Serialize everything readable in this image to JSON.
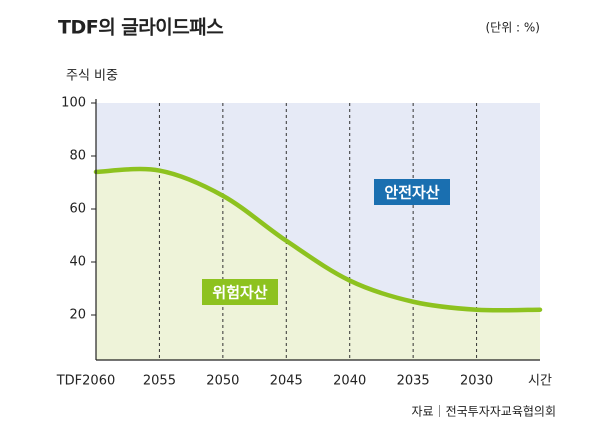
{
  "chart_data": {
    "type": "area",
    "title": "TDF의 글라이드패스",
    "unit": "(단위 : %)",
    "y_label": "주식 비중",
    "categories": [
      "TDF2060",
      "2055",
      "2050",
      "2045",
      "2040",
      "2035",
      "2030",
      "시간"
    ],
    "values": [
      74,
      74.5,
      65,
      48,
      33,
      25,
      22,
      22
    ],
    "ylim": [
      0,
      100
    ],
    "yticks": [
      20,
      40,
      60,
      80,
      100
    ],
    "color": "#8dc21f",
    "area_color": "#eef3d9",
    "background_color": "#e6eaf6",
    "annotations": [
      {
        "text": "안전자산",
        "color": "#1a6fb0"
      },
      {
        "text": "위험자산",
        "color": "#8dc21f"
      }
    ],
    "source": "자료｜전국투자자교육협의회"
  }
}
